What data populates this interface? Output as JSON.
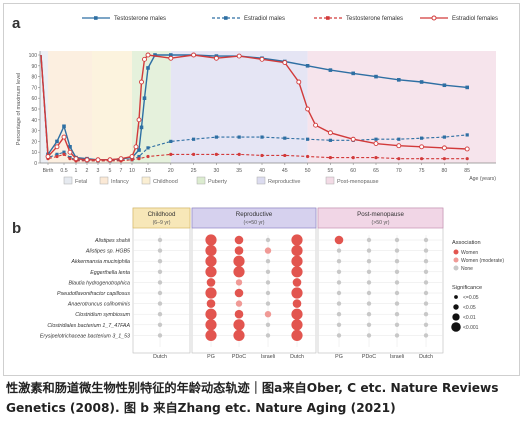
{
  "caption": {
    "line1": "性激素和肠道微生物性别特征的年龄动态轨迹｜图a来自Ober, C etc. Nature Reviews",
    "line2": "Genetics (2008). 图 b 来自Zhang etc. Nature Aging (2021)"
  },
  "panel_a": {
    "label": "a",
    "colors": {
      "blue": "#2e6fa3",
      "red": "#d23a3a",
      "blue_light": "#7fb3d6",
      "red_light": "#e38a7a"
    },
    "background_stages": [
      {
        "name": "fetal",
        "from": "0",
        "to": "birth",
        "color": "#e6eaf0"
      },
      {
        "name": "infancy",
        "from": "birth",
        "to": "2.5",
        "color": "#fbe9d6"
      },
      {
        "name": "childhood",
        "from": "2.5",
        "to": "10",
        "color": "#fbefd3"
      },
      {
        "name": "puberty",
        "from": "10",
        "to": "20",
        "color": "#dcecd0"
      },
      {
        "name": "reproductive",
        "from": "20",
        "to": "50",
        "color": "#dcdcf0"
      },
      {
        "name": "post-menopause",
        "from": "50",
        "to": "85",
        "color": "#f3dbe6"
      }
    ]
  },
  "panel_b": {
    "label": "b",
    "groups": [
      {
        "title": "Childhood",
        "subtitle": "(6–9 yr)",
        "color": "#f7e7b8",
        "border": "#d8b966"
      },
      {
        "title": "Reproductive",
        "subtitle": "(<=50 yr)",
        "color": "#d6d1ee",
        "border": "#8f86c6"
      },
      {
        "title": "Post-menopause",
        "subtitle": "(>50 yr)",
        "color": "#f1d6e6",
        "border": "#c792b2"
      }
    ],
    "cohorts": [
      "Dutch",
      "PG",
      "PDoC",
      "Israeli",
      "Dutch",
      "PG",
      "PDoC",
      "Israeli",
      "Dutch"
    ],
    "assoc_legend": {
      "title": "Association",
      "items": [
        {
          "label": "Women",
          "color": "#e2554f"
        },
        {
          "label": "Women (moderate)",
          "color": "#f09a96"
        },
        {
          "label": "None",
          "color": "#c8c8c8"
        }
      ]
    },
    "sig_legend": {
      "title": "Significance",
      "items": [
        "<=0.05",
        "<0.05",
        "<0.01",
        "<0.001"
      ]
    }
  },
  "chart_data": [
    {
      "type": "line",
      "xlabel": "Age (years)",
      "ylabel": "Percentage of maximum level",
      "ylim": [
        0,
        100
      ],
      "x_ticks": [
        "Birth",
        "0.5",
        "1",
        "2",
        "3",
        "5",
        "7",
        "10",
        "15",
        "20",
        "25",
        "30",
        "35",
        "40",
        "45",
        "50",
        "55",
        "60",
        "65",
        "70",
        "75",
        "80",
        "85"
      ],
      "y_ticks": [
        0,
        10,
        20,
        30,
        40,
        50,
        60,
        70,
        80,
        90,
        100
      ],
      "legend_position": "top",
      "stage_legend": [
        "Fetal",
        "Infancy",
        "Childhood",
        "Puberty",
        "Reproductive",
        "Post-menopause"
      ],
      "series": [
        {
          "name": "Testosterone males",
          "style": "solid",
          "color": "#2e6fa3",
          "x": [
            "0",
            "Birth",
            "0.25",
            "0.5",
            "0.75",
            "1",
            "2",
            "3",
            "5",
            "7",
            "10",
            "12",
            "13",
            "14",
            "15",
            "17",
            "20",
            "25",
            "30",
            "35",
            "40",
            "45",
            "50",
            "55",
            "60",
            "65",
            "70",
            "75",
            "80",
            "85"
          ],
          "y": [
            100,
            8,
            20,
            34,
            15,
            5,
            4,
            3,
            3,
            4,
            5,
            12,
            33,
            60,
            88,
            100,
            100,
            100,
            99,
            99,
            97,
            94,
            90,
            86,
            83,
            80,
            77,
            75,
            72,
            70
          ]
        },
        {
          "name": "Estradiol males",
          "style": "dashed",
          "color": "#2e6fa3",
          "x": [
            "0",
            "Birth",
            "0.25",
            "0.5",
            "0.75",
            "1",
            "2",
            "3",
            "5",
            "7",
            "10",
            "12",
            "15",
            "20",
            "25",
            "30",
            "35",
            "40",
            "45",
            "50",
            "55",
            "60",
            "65",
            "70",
            "75",
            "80",
            "85"
          ],
          "y": [
            100,
            5,
            8,
            10,
            5,
            3,
            2,
            2,
            2,
            3,
            3,
            6,
            14,
            20,
            22,
            24,
            24,
            24,
            23,
            22,
            21,
            21,
            22,
            22,
            23,
            24,
            26
          ]
        },
        {
          "name": "Testosterone females",
          "style": "dashed",
          "color": "#d23a3a",
          "x": [
            "0",
            "Birth",
            "0.25",
            "0.5",
            "0.75",
            "1",
            "2",
            "3",
            "5",
            "7",
            "10",
            "12",
            "15",
            "20",
            "25",
            "30",
            "35",
            "40",
            "45",
            "50",
            "55",
            "60",
            "65",
            "70",
            "75",
            "80",
            "85"
          ],
          "y": [
            100,
            4,
            6,
            8,
            4,
            2,
            2,
            2,
            2,
            2,
            3,
            4,
            6,
            8,
            8,
            8,
            8,
            7,
            7,
            6,
            5,
            5,
            5,
            4,
            4,
            4,
            4
          ]
        },
        {
          "name": "Estradiol females",
          "style": "solid",
          "color": "#d23a3a",
          "x": [
            "0",
            "Birth",
            "0.25",
            "0.5",
            "0.75",
            "1",
            "2",
            "3",
            "5",
            "7",
            "10",
            "11",
            "12",
            "13",
            "14",
            "15",
            "20",
            "25",
            "30",
            "35",
            "40",
            "45",
            "48",
            "50",
            "52",
            "55",
            "60",
            "65",
            "70",
            "75",
            "80",
            "85"
          ],
          "y": [
            100,
            6,
            15,
            24,
            10,
            4,
            3,
            3,
            3,
            4,
            6,
            15,
            40,
            75,
            96,
            100,
            97,
            100,
            97,
            99,
            96,
            93,
            75,
            50,
            35,
            28,
            22,
            18,
            16,
            15,
            14,
            13
          ]
        }
      ]
    },
    {
      "type": "scatter",
      "rows": [
        "Alistipes shahii",
        "Alistipes sp. HGB5",
        "Akkermansia muciniphila",
        "Eggerthella lenta",
        "Blautia hydrogenotrophica",
        "Pseudoflavonifractor capillosus",
        "Anaerotruncus colihominis",
        "Clostridium symbiosum",
        "Clostridiales bacterium 1_7_47FAA",
        "Erysipelotrichaceae bacterium 3_1_53"
      ],
      "columns": [
        "Childhood Dutch",
        "Reproductive PG",
        "Reproductive PDoC",
        "Reproductive Israeli",
        "Reproductive Dutch",
        "Post-menopause PG",
        "Post-menopause PDoC",
        "Post-menopause Israeli",
        "Post-menopause Dutch"
      ],
      "association_codes": {
        "0": "None",
        "1": "Women (moderate)",
        "2": "Women"
      },
      "significance_codes": {
        "0": "<=0.05",
        "1": "<0.05",
        "2": "<0.01",
        "3": "<0.001"
      },
      "association": [
        [
          0,
          2,
          2,
          0,
          2,
          2,
          0,
          0,
          0
        ],
        [
          0,
          2,
          2,
          1,
          2,
          0,
          0,
          0,
          0
        ],
        [
          0,
          2,
          2,
          0,
          2,
          0,
          0,
          0,
          0
        ],
        [
          0,
          2,
          2,
          0,
          2,
          0,
          0,
          0,
          0
        ],
        [
          0,
          2,
          1,
          0,
          2,
          0,
          0,
          0,
          0
        ],
        [
          0,
          2,
          2,
          0,
          2,
          0,
          0,
          0,
          0
        ],
        [
          0,
          2,
          1,
          0,
          2,
          0,
          0,
          0,
          0
        ],
        [
          0,
          2,
          2,
          1,
          2,
          0,
          0,
          0,
          0
        ],
        [
          0,
          2,
          2,
          0,
          2,
          0,
          0,
          0,
          0
        ],
        [
          0,
          2,
          2,
          0,
          2,
          0,
          0,
          0,
          0
        ]
      ],
      "significance": [
        [
          0,
          3,
          2,
          0,
          3,
          2,
          0,
          0,
          0
        ],
        [
          0,
          3,
          2,
          1,
          3,
          0,
          0,
          0,
          0
        ],
        [
          0,
          3,
          3,
          0,
          3,
          0,
          0,
          0,
          0
        ],
        [
          0,
          3,
          3,
          0,
          3,
          0,
          0,
          0,
          0
        ],
        [
          0,
          2,
          1,
          0,
          2,
          0,
          0,
          0,
          0
        ],
        [
          0,
          3,
          2,
          0,
          3,
          0,
          0,
          0,
          0
        ],
        [
          0,
          2,
          1,
          0,
          2,
          0,
          0,
          0,
          0
        ],
        [
          0,
          3,
          2,
          1,
          3,
          0,
          0,
          0,
          0
        ],
        [
          0,
          3,
          3,
          0,
          3,
          0,
          0,
          0,
          0
        ],
        [
          0,
          3,
          3,
          0,
          3,
          0,
          0,
          0,
          0
        ]
      ]
    }
  ]
}
